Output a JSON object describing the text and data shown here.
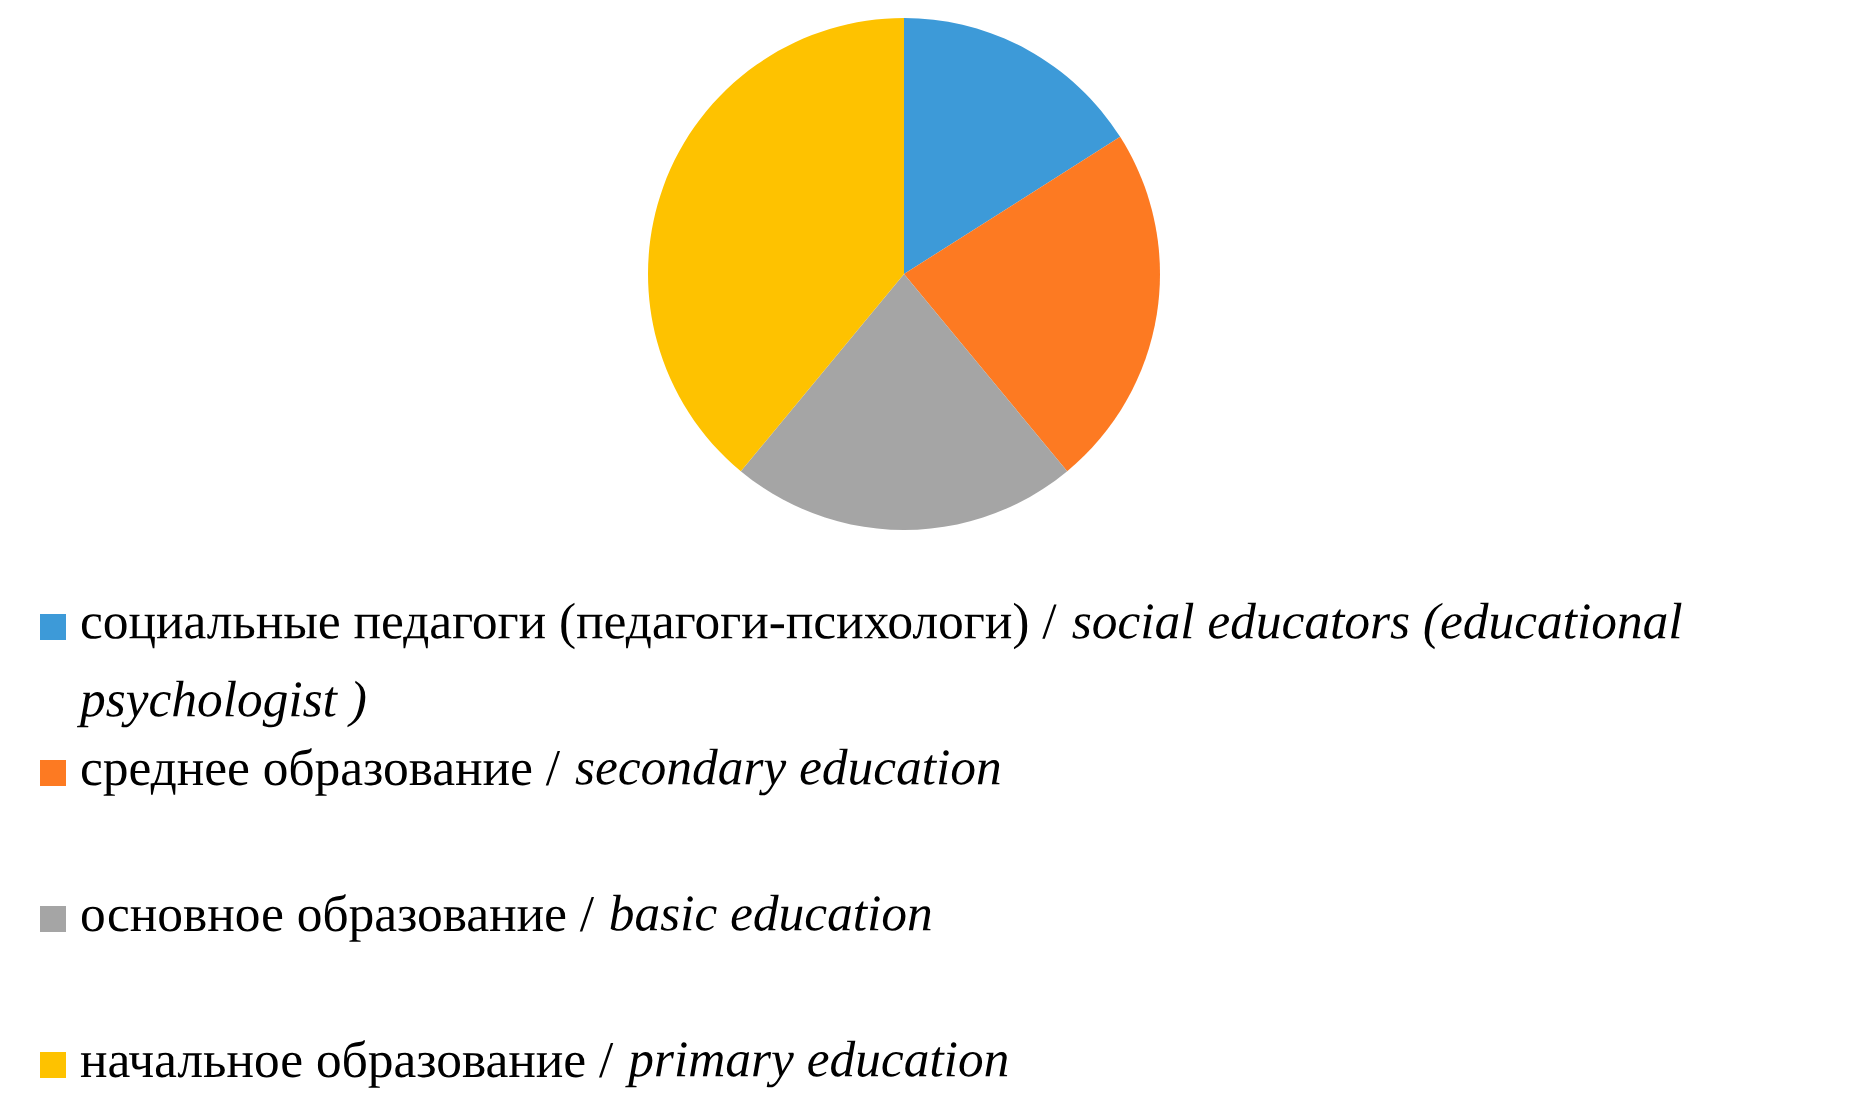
{
  "chart_data": {
    "type": "pie",
    "categories": [
      "социальные педагоги (педагоги-психологи) / social educators (educational psychologist )",
      "среднее образование / secondary education",
      "основное образование / basic education",
      "начальное образование / primary education"
    ],
    "values": [
      16,
      23,
      22,
      39
    ],
    "colors": [
      "#3d9ad8",
      "#fd7a22",
      "#a5a5a5",
      "#fec200"
    ],
    "legend": "bottom"
  }
}
